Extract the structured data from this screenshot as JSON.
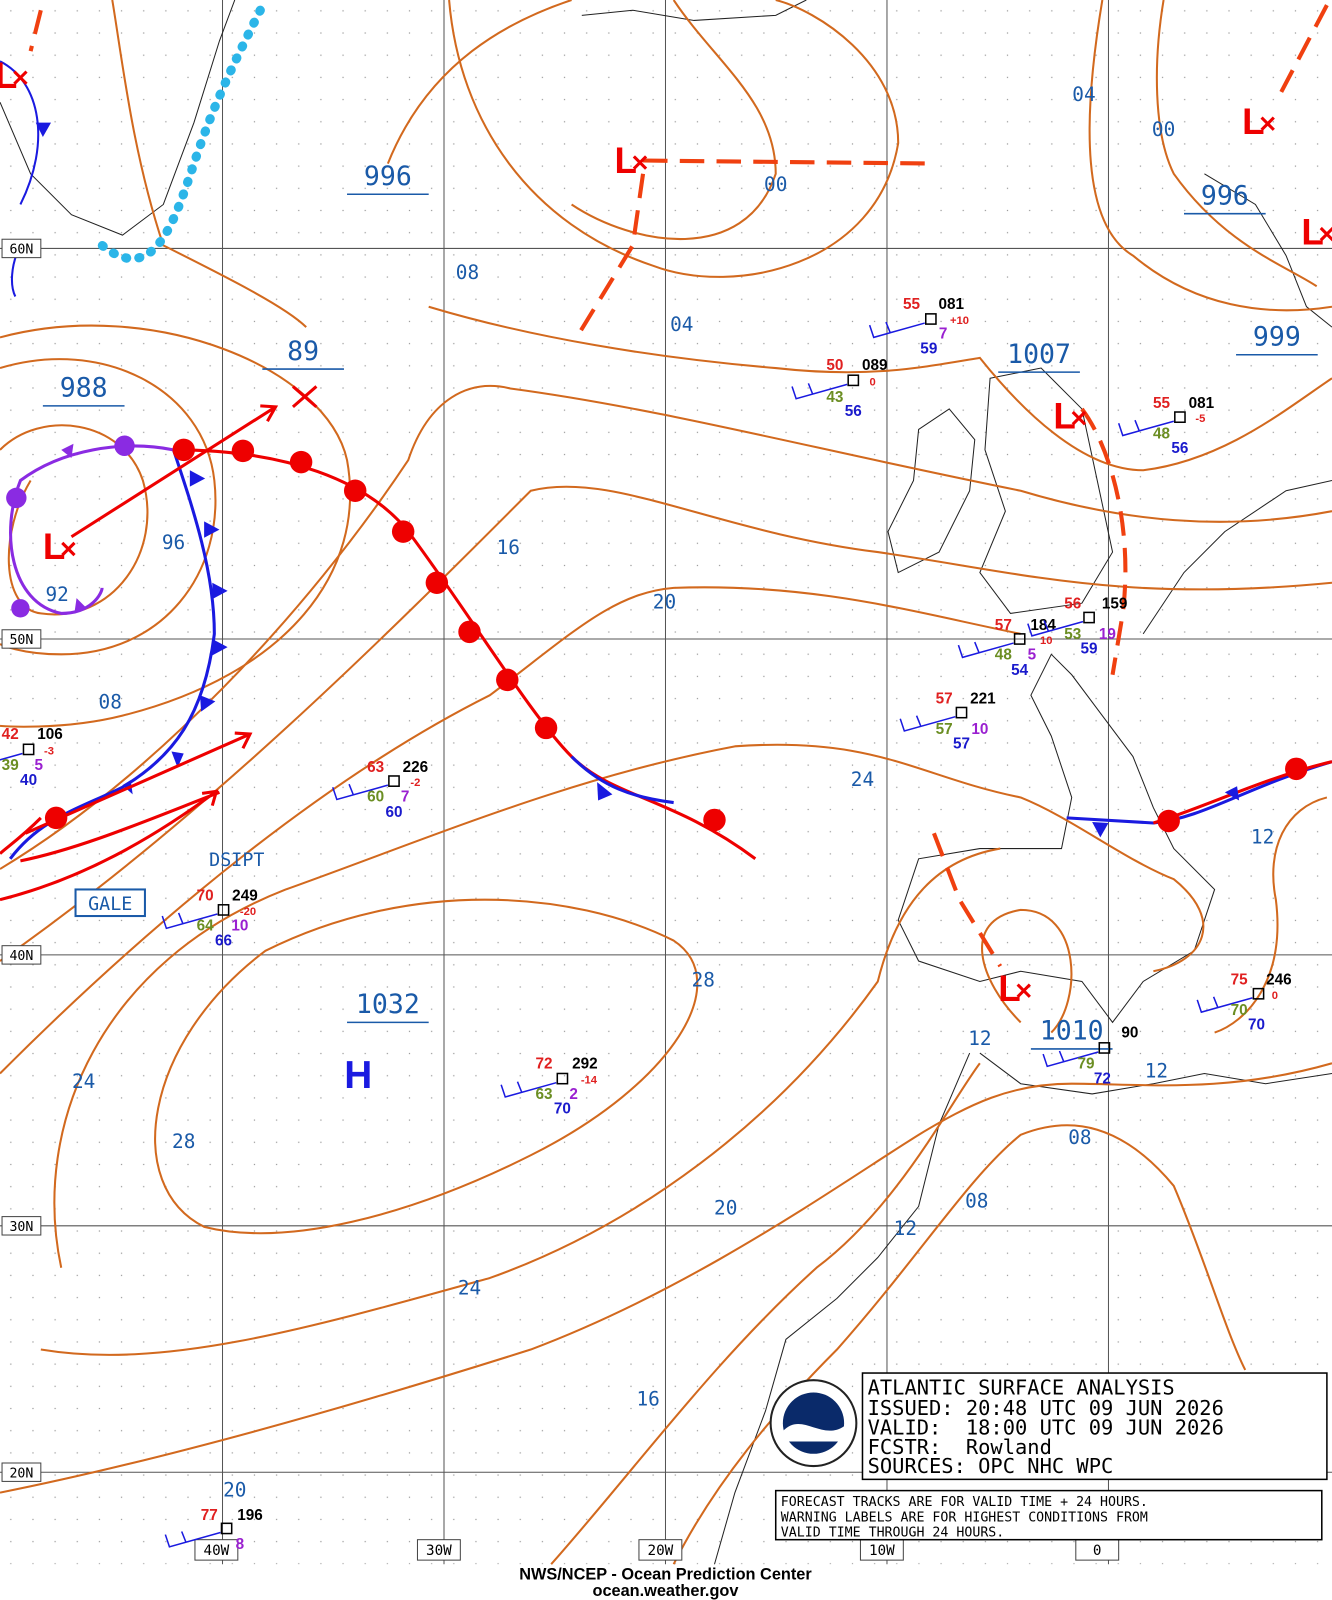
{
  "info": {
    "title": "ATLANTIC SURFACE ANALYSIS",
    "issued": "ISSUED: 20:48 UTC 09 JUN 2026",
    "valid": "VALID:  18:00 UTC 09 JUN 2026",
    "forecaster": "FCSTR:  Rowland",
    "sources": "SOURCES: OPC NHC WPC"
  },
  "notes": [
    "FORECAST TRACKS ARE FOR VALID TIME + 24 HOURS.",
    "WARNING LABELS ARE FOR HIGHEST CONDITIONS FROM",
    "VALID TIME THROUGH 24 HOURS."
  ],
  "footer": [
    "NWS/NCEP - Ocean Prediction Center",
    "ocean.weather.gov"
  ],
  "lat_labels": [
    "60N",
    "50N",
    "40N",
    "30N",
    "20N"
  ],
  "lon_labels": [
    "40W",
    "30W",
    "20W",
    "10W",
    "0"
  ],
  "pressure_labels": [
    "996",
    "89",
    "988",
    "1007",
    "996",
    "999",
    "1032",
    "1010"
  ],
  "isobar_labels": [
    "00",
    "04",
    "00",
    "08",
    "04",
    "96",
    "92",
    "16",
    "20",
    "08",
    "24",
    "12",
    "28",
    "12",
    "12",
    "24",
    "28",
    "08",
    "08",
    "20",
    "12",
    "24",
    "16",
    "20"
  ],
  "high_symbol": "H",
  "low_symbol": "L",
  "warnings": [
    "GALE",
    "DSIPT"
  ],
  "stations": [
    [
      "55",
      "081",
      "+10",
      "7",
      "59"
    ],
    [
      "50",
      "089",
      "0",
      "43",
      "56"
    ],
    [
      "55",
      "081",
      "-5",
      "48",
      "56"
    ],
    [
      "57",
      "184",
      "10",
      "48",
      "5",
      "54"
    ],
    [
      "56",
      "159",
      "53",
      "19",
      "59"
    ],
    [
      "57",
      "221",
      "57",
      "10",
      "57"
    ],
    [
      "42",
      "106",
      "-3",
      "39",
      "5",
      "40"
    ],
    [
      "63",
      "226",
      "-2",
      "60",
      "7",
      "60"
    ],
    [
      "70",
      "249",
      "-20",
      "64",
      "10",
      "66"
    ],
    [
      "72",
      "292",
      "-14",
      "63",
      "2",
      "70"
    ],
    [
      "75",
      "246",
      "0",
      "70",
      "70"
    ],
    [
      "90",
      "79",
      "72"
    ],
    [
      "77",
      "196",
      "8"
    ]
  ]
}
